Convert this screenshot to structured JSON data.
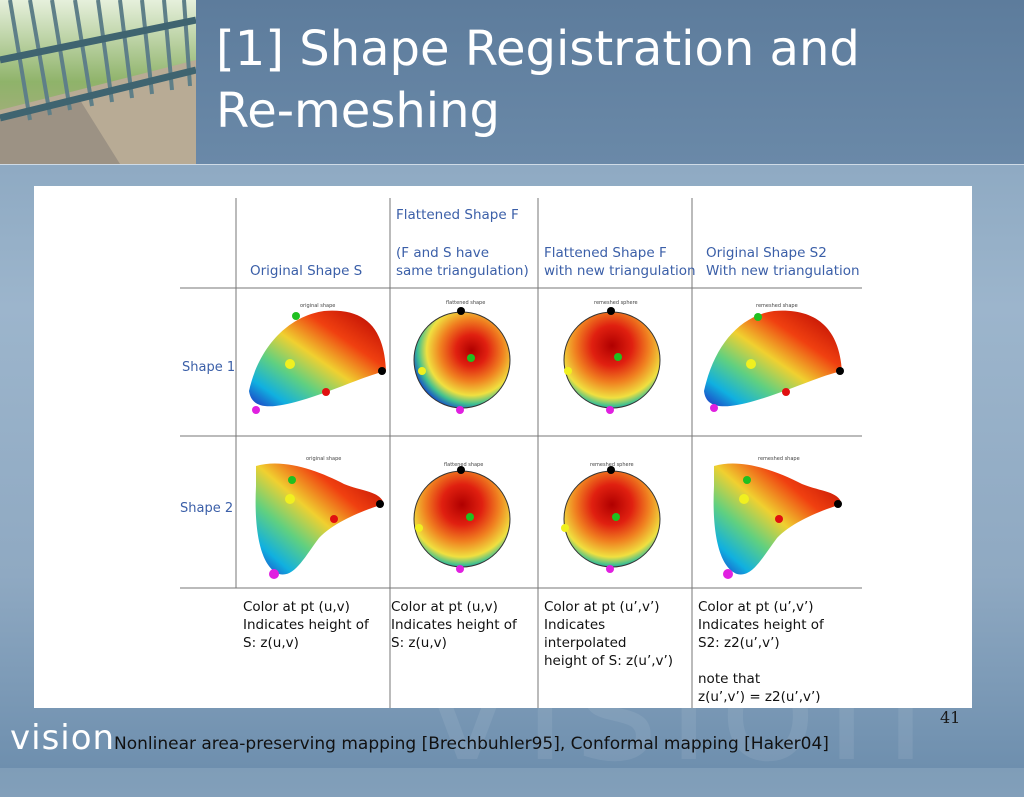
{
  "slide": {
    "title_line1": "[1] Shape Registration and",
    "title_line2": "Re-meshing",
    "slide_number": "41",
    "logo_text": "vision",
    "footer": "Nonlinear area-preserving mapping [Brechbuhler95], Conformal mapping [Haker04]"
  },
  "table": {
    "col_headers": {
      "c1": "Original Shape S",
      "c2_line1": "Flattened Shape F",
      "c2_line2": "(F and S have",
      "c2_line3": "same triangulation)",
      "c3_line1": "Flattened Shape F",
      "c3_line2": "with new triangulation",
      "c4_line1": "Original Shape S2",
      "c4_line2": "With new triangulation"
    },
    "row_labels": {
      "r1": "Shape 1",
      "r2": "Shape 2"
    },
    "mini_labels": {
      "original": "original shape",
      "flattened": "flattened shape",
      "remeshed_sphere": "remeshed sphere",
      "remeshed_shape": "remeshed shape"
    },
    "captions": {
      "c1": "Color at pt (u,v)\nIndicates height of\nS: z(u,v)",
      "c2": "Color at pt (u,v)\nIndicates height of\nS: z(u,v)",
      "c3": "Color at pt (u’,v’)\nIndicates interpolated\nheight of S: z(u’,v’)",
      "c4": "Color at pt (u’,v’)\nIndicates height of\nS2: z2(u’,v’)\n\nnote that\nz(u’,v’) = z2(u’,v’)"
    }
  }
}
